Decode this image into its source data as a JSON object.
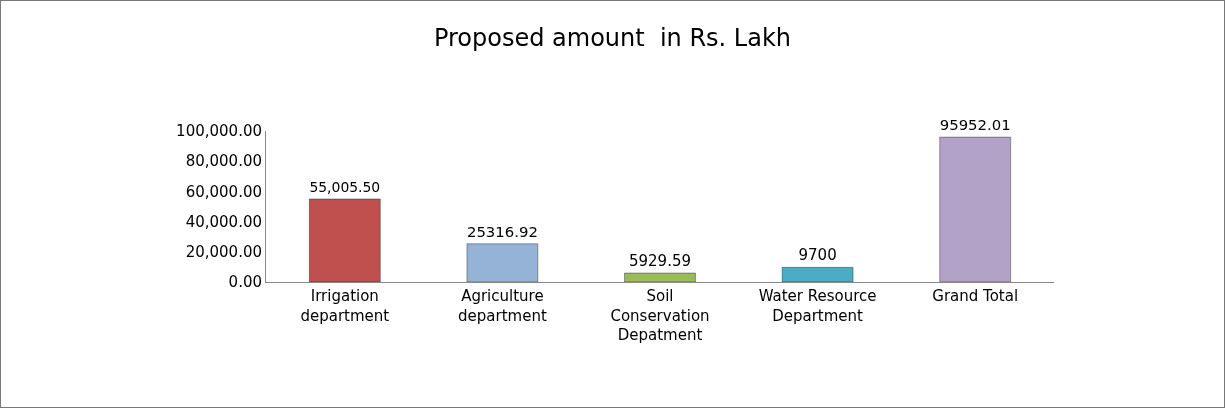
{
  "chart_data": {
    "type": "bar",
    "title": "Proposed amount  in Rs. Lakh",
    "categories": [
      "Irrigation department",
      "Agriculture department",
      "Soil Conservation Depatment",
      "Water Resource Department",
      "Grand Total"
    ],
    "values": [
      55005.5,
      25316.92,
      5929.59,
      9700,
      95952.01
    ],
    "value_labels": [
      "55,005.50",
      "25316.92",
      "5929.59",
      "9700",
      "95952.01"
    ],
    "colors": [
      "#c0504d",
      "#95b3d7",
      "#9bbb59",
      "#4bacc6",
      "#b3a2c7"
    ],
    "ylim": [
      0,
      100000
    ],
    "yticks": [
      {
        "value": 0,
        "label": "0.00"
      },
      {
        "value": 20000,
        "label": "20,000.00"
      },
      {
        "value": 40000,
        "label": "40,000.00"
      },
      {
        "value": 60000,
        "label": "60,000.00"
      },
      {
        "value": 80000,
        "label": "80,000.00"
      },
      {
        "value": 100000,
        "label": "100,000.00"
      }
    ],
    "grid": false
  }
}
